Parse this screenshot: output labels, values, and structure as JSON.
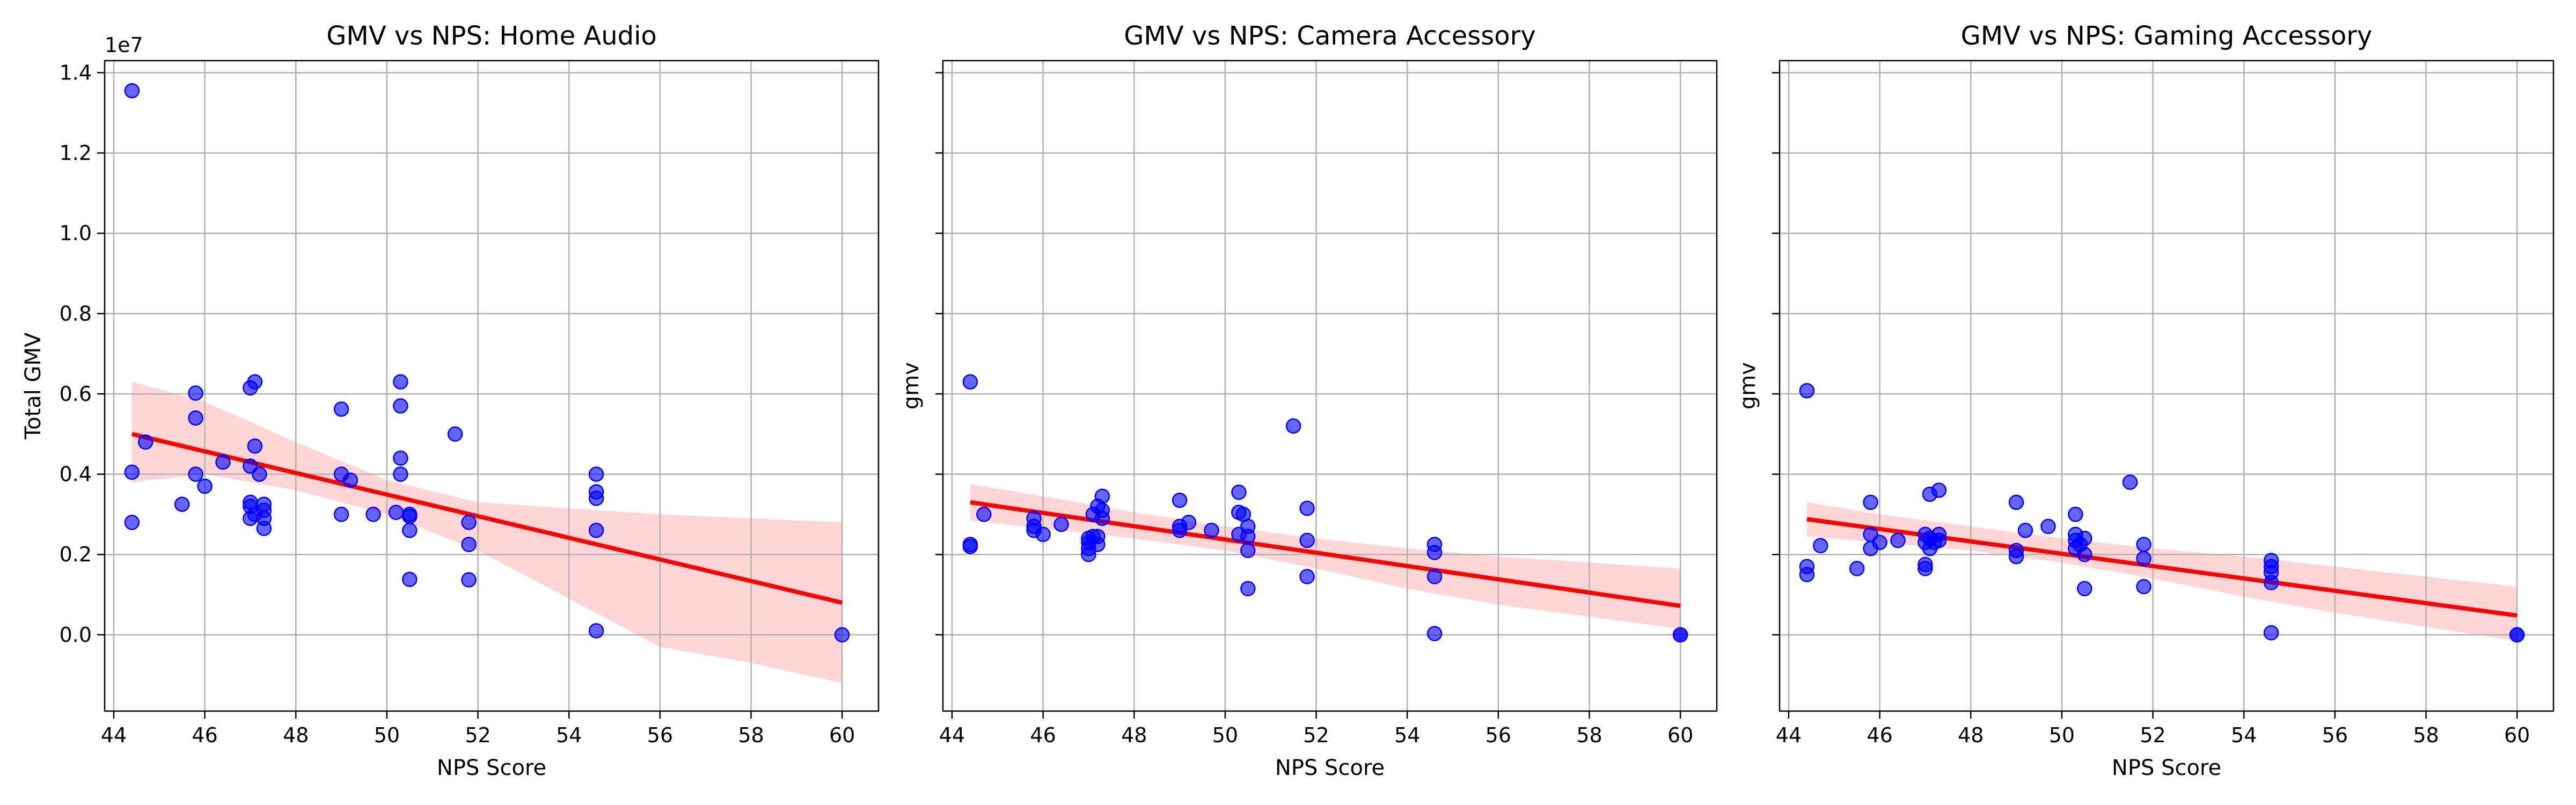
{
  "chart_data": [
    {
      "type": "scatter",
      "title": "GMV vs NPS: Home Audio",
      "xlabel": "NPS Score",
      "ylabel": "Total GMV",
      "y_offset_label": "1e7",
      "y_scale": 10000000,
      "xlim": [
        43.8,
        60.8
      ],
      "ylim": [
        -1900000,
        14300000
      ],
      "x_ticks": [
        44,
        46,
        48,
        50,
        52,
        54,
        56,
        58,
        60
      ],
      "y_ticks": [
        0,
        2000000,
        4000000,
        6000000,
        8000000,
        10000000,
        12000000,
        14000000
      ],
      "y_tick_labels": [
        "0.0",
        "0.2",
        "0.4",
        "0.6",
        "0.8",
        "1.0",
        "1.2",
        "1.4"
      ],
      "show_y_tick_labels": true,
      "grid": true,
      "point_color": "#0000ff",
      "line_color": "#ff0000",
      "band_color": "#ffb3b3",
      "points": [
        [
          44.4,
          13550000
        ],
        [
          44.4,
          4050000
        ],
        [
          44.4,
          2800000
        ],
        [
          44.7,
          4800000
        ],
        [
          45.5,
          3250000
        ],
        [
          45.8,
          6020000
        ],
        [
          45.8,
          5400000
        ],
        [
          45.8,
          4000000
        ],
        [
          46.0,
          3700000
        ],
        [
          46.4,
          4300000
        ],
        [
          47.0,
          6150000
        ],
        [
          47.1,
          6300000
        ],
        [
          47.1,
          4700000
        ],
        [
          47.0,
          4200000
        ],
        [
          47.2,
          4000000
        ],
        [
          47.0,
          3300000
        ],
        [
          47.0,
          3200000
        ],
        [
          47.1,
          3000000
        ],
        [
          47.0,
          2900000
        ],
        [
          47.3,
          3250000
        ],
        [
          47.3,
          3100000
        ],
        [
          47.3,
          2900000
        ],
        [
          47.3,
          2650000
        ],
        [
          49.0,
          5620000
        ],
        [
          49.0,
          4000000
        ],
        [
          49.2,
          3850000
        ],
        [
          49.0,
          3000000
        ],
        [
          49.7,
          3000000
        ],
        [
          50.2,
          3050000
        ],
        [
          50.3,
          6300000
        ],
        [
          50.3,
          5700000
        ],
        [
          50.3,
          4400000
        ],
        [
          50.3,
          4000000
        ],
        [
          50.5,
          3000000
        ],
        [
          50.5,
          2950000
        ],
        [
          50.5,
          2600000
        ],
        [
          50.5,
          1380000
        ],
        [
          51.5,
          5000000
        ],
        [
          51.8,
          2800000
        ],
        [
          51.8,
          2250000
        ],
        [
          51.8,
          1370000
        ],
        [
          54.6,
          4000000
        ],
        [
          54.6,
          3560000
        ],
        [
          54.6,
          3400000
        ],
        [
          54.6,
          2600000
        ],
        [
          54.6,
          100000
        ],
        [
          60.0,
          0
        ]
      ],
      "regression": {
        "x": [
          44.4,
          60.0
        ],
        "y": [
          5000000,
          800000
        ]
      },
      "confidence_band": {
        "x": [
          44.4,
          46,
          48,
          50,
          52,
          54,
          56,
          58,
          60
        ],
        "lower": [
          3800000,
          4000000,
          3600000,
          3000000,
          2100000,
          900000,
          -300000,
          -700000,
          -1200000
        ],
        "upper": [
          6300000,
          5800000,
          4800000,
          3850000,
          3300000,
          3150000,
          3000000,
          2900000,
          2800000
        ]
      }
    },
    {
      "type": "scatter",
      "title": "GMV vs NPS: Camera Accessory",
      "xlabel": "NPS Score",
      "ylabel": "gmv",
      "y_scale": 10000000,
      "xlim": [
        43.8,
        60.8
      ],
      "ylim": [
        -1900000,
        14300000
      ],
      "x_ticks": [
        44,
        46,
        48,
        50,
        52,
        54,
        56,
        58,
        60
      ],
      "y_ticks": [
        0,
        2000000,
        4000000,
        6000000,
        8000000,
        10000000,
        12000000,
        14000000
      ],
      "show_y_tick_labels": false,
      "grid": true,
      "point_color": "#0000ff",
      "line_color": "#ff0000",
      "band_color": "#ffb3b3",
      "points": [
        [
          44.4,
          6300000
        ],
        [
          44.4,
          2250000
        ],
        [
          44.4,
          2200000
        ],
        [
          44.7,
          3000000
        ],
        [
          45.8,
          2900000
        ],
        [
          45.8,
          2700000
        ],
        [
          45.8,
          2600000
        ],
        [
          46.0,
          2500000
        ],
        [
          46.4,
          2750000
        ],
        [
          47.0,
          2400000
        ],
        [
          47.0,
          2300000
        ],
        [
          47.0,
          2150000
        ],
        [
          47.0,
          2000000
        ],
        [
          47.1,
          3000000
        ],
        [
          47.1,
          2450000
        ],
        [
          47.2,
          3200000
        ],
        [
          47.2,
          2450000
        ],
        [
          47.2,
          2250000
        ],
        [
          47.3,
          3100000
        ],
        [
          47.3,
          2900000
        ],
        [
          47.3,
          3450000
        ],
        [
          49.0,
          3350000
        ],
        [
          49.0,
          2700000
        ],
        [
          49.0,
          2600000
        ],
        [
          49.2,
          2800000
        ],
        [
          49.7,
          2600000
        ],
        [
          50.3,
          3550000
        ],
        [
          50.3,
          3050000
        ],
        [
          50.3,
          2500000
        ],
        [
          50.4,
          3000000
        ],
        [
          50.5,
          2700000
        ],
        [
          50.5,
          2450000
        ],
        [
          50.5,
          2100000
        ],
        [
          50.5,
          1150000
        ],
        [
          51.5,
          5200000
        ],
        [
          51.8,
          3150000
        ],
        [
          51.8,
          2350000
        ],
        [
          51.8,
          1450000
        ],
        [
          54.6,
          2250000
        ],
        [
          54.6,
          2050000
        ],
        [
          54.6,
          1450000
        ],
        [
          54.6,
          30000
        ],
        [
          60.0,
          0
        ],
        [
          60.0,
          0
        ]
      ],
      "regression": {
        "x": [
          44.4,
          60.0
        ],
        "y": [
          3300000,
          720000
        ]
      },
      "confidence_band": {
        "x": [
          44.4,
          46,
          48,
          50,
          52,
          54,
          56,
          58,
          60
        ],
        "lower": [
          2850000,
          2650000,
          2400000,
          2100000,
          1650000,
          1150000,
          750000,
          450000,
          150000
        ],
        "upper": [
          3750000,
          3450000,
          3050000,
          2700000,
          2400000,
          2150000,
          1950000,
          1800000,
          1650000
        ]
      }
    },
    {
      "type": "scatter",
      "title": "GMV vs NPS: Gaming Accessory",
      "xlabel": "NPS Score",
      "ylabel": "gmv",
      "y_scale": 10000000,
      "xlim": [
        43.8,
        60.8
      ],
      "ylim": [
        -1900000,
        14300000
      ],
      "x_ticks": [
        44,
        46,
        48,
        50,
        52,
        54,
        56,
        58,
        60
      ],
      "y_ticks": [
        0,
        2000000,
        4000000,
        6000000,
        8000000,
        10000000,
        12000000,
        14000000
      ],
      "show_y_tick_labels": false,
      "grid": true,
      "point_color": "#0000ff",
      "line_color": "#ff0000",
      "band_color": "#ffb3b3",
      "points": [
        [
          44.4,
          6080000
        ],
        [
          44.4,
          1700000
        ],
        [
          44.4,
          1500000
        ],
        [
          44.7,
          2220000
        ],
        [
          45.5,
          1650000
        ],
        [
          45.8,
          3300000
        ],
        [
          45.8,
          2500000
        ],
        [
          45.8,
          2150000
        ],
        [
          46.0,
          2300000
        ],
        [
          46.4,
          2350000
        ],
        [
          47.0,
          2500000
        ],
        [
          47.0,
          2300000
        ],
        [
          47.0,
          1750000
        ],
        [
          47.0,
          1650000
        ],
        [
          47.1,
          3500000
        ],
        [
          47.1,
          2400000
        ],
        [
          47.1,
          2150000
        ],
        [
          47.2,
          2300000
        ],
        [
          47.3,
          3600000
        ],
        [
          47.3,
          2500000
        ],
        [
          47.3,
          2350000
        ],
        [
          49.0,
          3300000
        ],
        [
          49.0,
          2100000
        ],
        [
          49.0,
          1950000
        ],
        [
          49.2,
          2600000
        ],
        [
          49.7,
          2700000
        ],
        [
          50.3,
          3000000
        ],
        [
          50.3,
          2500000
        ],
        [
          50.3,
          2350000
        ],
        [
          50.3,
          2150000
        ],
        [
          50.4,
          2250000
        ],
        [
          50.5,
          2400000
        ],
        [
          50.5,
          2000000
        ],
        [
          50.5,
          1150000
        ],
        [
          51.5,
          3800000
        ],
        [
          51.8,
          2250000
        ],
        [
          51.8,
          1900000
        ],
        [
          51.8,
          1200000
        ],
        [
          54.6,
          1850000
        ],
        [
          54.6,
          1700000
        ],
        [
          54.6,
          1550000
        ],
        [
          54.6,
          1300000
        ],
        [
          54.6,
          50000
        ],
        [
          60.0,
          0
        ],
        [
          60.0,
          0
        ]
      ],
      "regression": {
        "x": [
          44.4,
          60.0
        ],
        "y": [
          2880000,
          480000
        ]
      },
      "confidence_band": {
        "x": [
          44.4,
          46,
          48,
          50,
          52,
          54,
          56,
          58,
          60
        ],
        "lower": [
          2450000,
          2300000,
          2100000,
          1800000,
          1400000,
          950000,
          550000,
          200000,
          -150000
        ],
        "upper": [
          3300000,
          3000000,
          2700000,
          2400000,
          2150000,
          1950000,
          1700000,
          1450000,
          1200000
        ]
      }
    }
  ]
}
